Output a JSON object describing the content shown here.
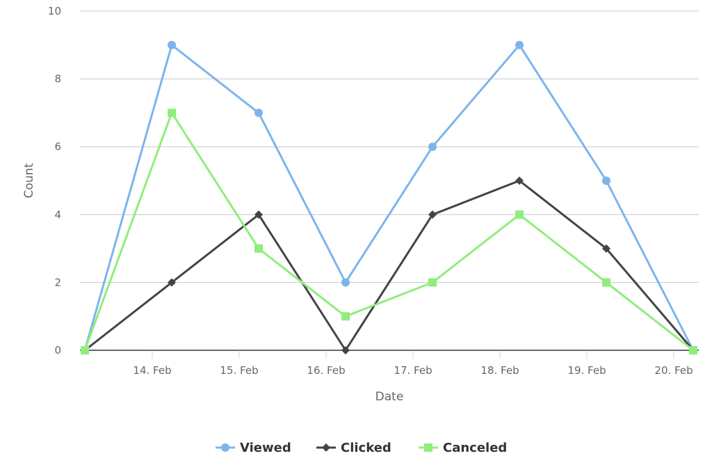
{
  "chart_data": {
    "type": "line",
    "title": "",
    "xlabel": "Date",
    "ylabel": "Count",
    "ylim": [
      0,
      10
    ],
    "yticks": [
      "0",
      "2",
      "4",
      "6",
      "8",
      "10"
    ],
    "xticks": [
      "14. Feb",
      "15. Feb",
      "16. Feb",
      "17. Feb",
      "18. Feb",
      "19. Feb",
      "20. Feb"
    ],
    "x": [
      "13. Feb",
      "14. Feb",
      "15. Feb",
      "16. Feb",
      "17. Feb",
      "18. Feb",
      "19. Feb",
      "20. Feb"
    ],
    "grid": true,
    "legend": "bottom-center",
    "series": [
      {
        "name": "Viewed",
        "color": "#7cb5ec",
        "marker": "circle",
        "values": [
          0,
          9,
          7,
          2,
          6,
          9,
          5,
          0
        ]
      },
      {
        "name": "Clicked",
        "color": "#434348",
        "marker": "diamond",
        "values": [
          0,
          2,
          4,
          0,
          4,
          5,
          3,
          0
        ]
      },
      {
        "name": "Canceled",
        "color": "#90ed7d",
        "marker": "square",
        "values": [
          0,
          7,
          3,
          1,
          2,
          4,
          2,
          0
        ]
      }
    ]
  }
}
